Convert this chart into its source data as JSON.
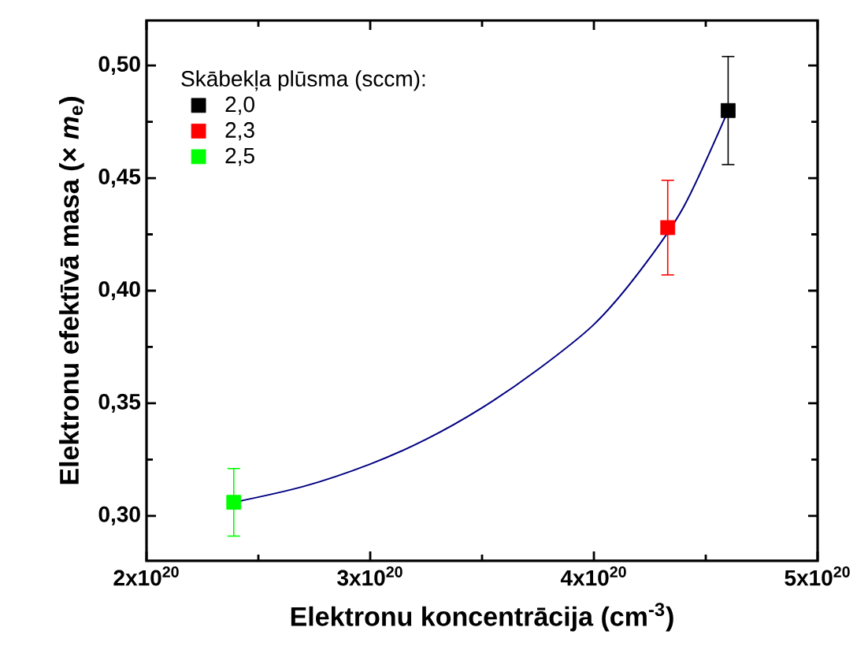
{
  "chart_data": {
    "type": "scatter",
    "xlabel": "Elektronu koncentrācija  (cm$^{-3}$)",
    "ylabel": "Elektronu efektīvā masa  (× *m*$_{e}$)",
    "legend_title": "Skābekļa plūsma  (sccm):",
    "legend": "top left",
    "marker": "square",
    "xlim": [
      2e+20,
      5e+20
    ],
    "ylim": [
      0.28,
      0.52
    ],
    "xticks": [
      {
        "value": 2e+20,
        "label": "2x10$^{20}$"
      },
      {
        "value": 3e+20,
        "label": "3x10$^{20}$"
      },
      {
        "value": 4e+20,
        "label": "4x10$^{20}$"
      },
      {
        "value": 5e+20,
        "label": "5x10$^{20}$"
      }
    ],
    "yticks": [
      {
        "value": 0.3,
        "label": "0,30"
      },
      {
        "value": 0.35,
        "label": "0,35"
      },
      {
        "value": 0.4,
        "label": "0,40"
      },
      {
        "value": 0.45,
        "label": "0,45"
      },
      {
        "value": 0.5,
        "label": "0,50"
      }
    ],
    "series": [
      {
        "name": "2,0",
        "color": "#000000",
        "x": [
          4.6e+20
        ],
        "values": [
          0.48
        ],
        "errors": [
          [
            0.456,
            0.504
          ]
        ]
      },
      {
        "name": "2,3",
        "color": "#ff0000",
        "x": [
          4.33e+20
        ],
        "values": [
          0.428
        ],
        "errors": [
          [
            0.407,
            0.449
          ]
        ]
      },
      {
        "name": "2,5",
        "color": "#00ff00",
        "x": [
          2.39e+20
        ],
        "values": [
          0.306
        ],
        "errors": [
          [
            0.291,
            0.321
          ]
        ]
      },
      {
        "type": "line",
        "marker": "none",
        "color": "#000080",
        "x": [
          2.39e+20,
          2.7e+20,
          3e+20,
          3.25e+20,
          3.5e+20,
          3.75e+20,
          4e+20,
          4.2e+20,
          4.4e+20,
          4.6e+20
        ],
        "values": [
          0.306,
          0.313,
          0.323,
          0.334,
          0.348,
          0.365,
          0.385,
          0.408,
          0.437,
          0.48
        ]
      }
    ]
  }
}
